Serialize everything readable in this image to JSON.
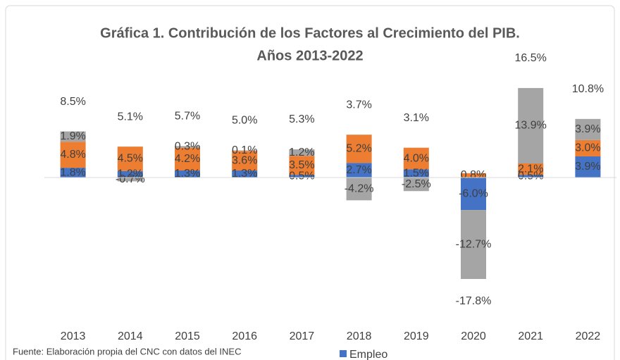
{
  "chart_data": {
    "type": "stacked_bar",
    "title": "Gráfica 1. Contribución de los Factores al Crecimiento del PIB.",
    "subtitle": "Años 2013-2022",
    "categories": [
      "2013",
      "2014",
      "2015",
      "2016",
      "2017",
      "2018",
      "2019",
      "2020",
      "2021",
      "2022"
    ],
    "series": [
      {
        "name": "Empleo",
        "color": "#4472c4",
        "values": [
          1.8,
          1.2,
          1.3,
          1.3,
          0.5,
          2.7,
          1.5,
          -6.0,
          0.5,
          3.9
        ],
        "value_labels": [
          "1.8%",
          "1.2%",
          "1.3%",
          "1.3%",
          "0.5%",
          "2.7%",
          "1.5%",
          "-6.0%",
          "0.5%",
          "3.9%"
        ]
      },
      {
        "color": "#ed7d31",
        "values": [
          4.8,
          4.5,
          4.2,
          3.6,
          3.5,
          5.2,
          4.0,
          0.8,
          2.1,
          3.0
        ],
        "value_labels": [
          "4.8%",
          "4.5%",
          "4.2%",
          "3.6%",
          "3.5%",
          "5.2%",
          "4.0%",
          "0.8%",
          "2.1%",
          "3.0%"
        ]
      },
      {
        "color": "#a5a5a5",
        "values": [
          1.9,
          -0.7,
          0.3,
          0.1,
          1.2,
          -4.2,
          -2.5,
          -12.7,
          13.9,
          3.9
        ],
        "value_labels": [
          "1.9%",
          "-0.7%",
          "0.3%",
          "0.1%",
          "1.2%",
          "-4.2%",
          "-2.5%",
          "-12.7%",
          "13.9%",
          "3.9%"
        ]
      }
    ],
    "totals": [
      8.5,
      5.1,
      5.7,
      5.0,
      5.3,
      3.7,
      3.1,
      -17.8,
      16.5,
      10.8
    ],
    "total_labels": [
      "8.5%",
      "5.1%",
      "5.7%",
      "5.0%",
      "5.3%",
      "3.7%",
      "3.1%",
      "-17.8%",
      "16.5%",
      "10.8%"
    ],
    "ylim": [
      -20,
      20
    ],
    "source": "Fuente: Elaboración propia del CNC con datos del INEC"
  }
}
